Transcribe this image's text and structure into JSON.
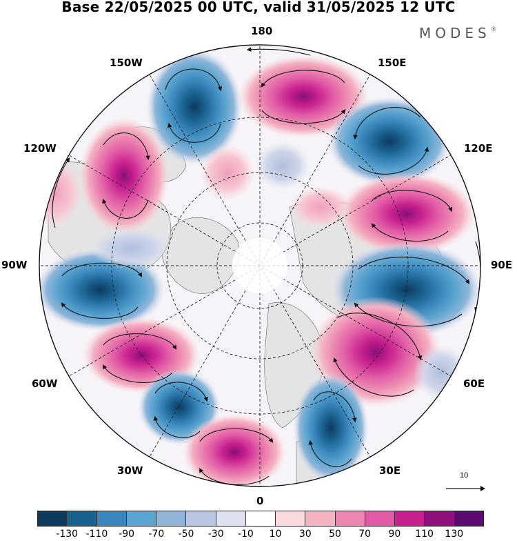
{
  "title": "Base 22/05/2025 00 UTC, valid 31/05/2025 12 UTC",
  "logo": {
    "text": "MODES",
    "mark": "®"
  },
  "map": {
    "projection": "north-polar-stereographic",
    "lon_labels": {
      "top": "180",
      "upper_left": "150W",
      "upper_right": "150E",
      "mid_upper_left": "120W",
      "mid_upper_right": "120E",
      "left": "90W",
      "right": "90E",
      "mid_lower_left": "60W",
      "mid_lower_right": "60E",
      "lower_left": "30W",
      "lower_right": "30E",
      "bottom": "0"
    },
    "positive_color": "#c8208e",
    "negative_color": "#1f6ea8",
    "land_color": "#e6e6e6",
    "vector_style": "curved streamlines with arrowheads"
  },
  "reference_vector": {
    "label": "10"
  },
  "colorbar": {
    "colors": [
      "#0e3a5e",
      "#19618f",
      "#3a87bd",
      "#5aa4cf",
      "#8fb6d9",
      "#b9c6e2",
      "#dfe1ef",
      "#ffffff",
      "#fbd8dc",
      "#f4b2c2",
      "#ec86b0",
      "#e05aa5",
      "#c8208e",
      "#92107d",
      "#5b0a6f"
    ],
    "tick_labels": [
      "-130",
      "-110",
      "-90",
      "-70",
      "-50",
      "-30",
      "-10",
      "10",
      "30",
      "50",
      "70",
      "90",
      "110",
      "130"
    ]
  }
}
